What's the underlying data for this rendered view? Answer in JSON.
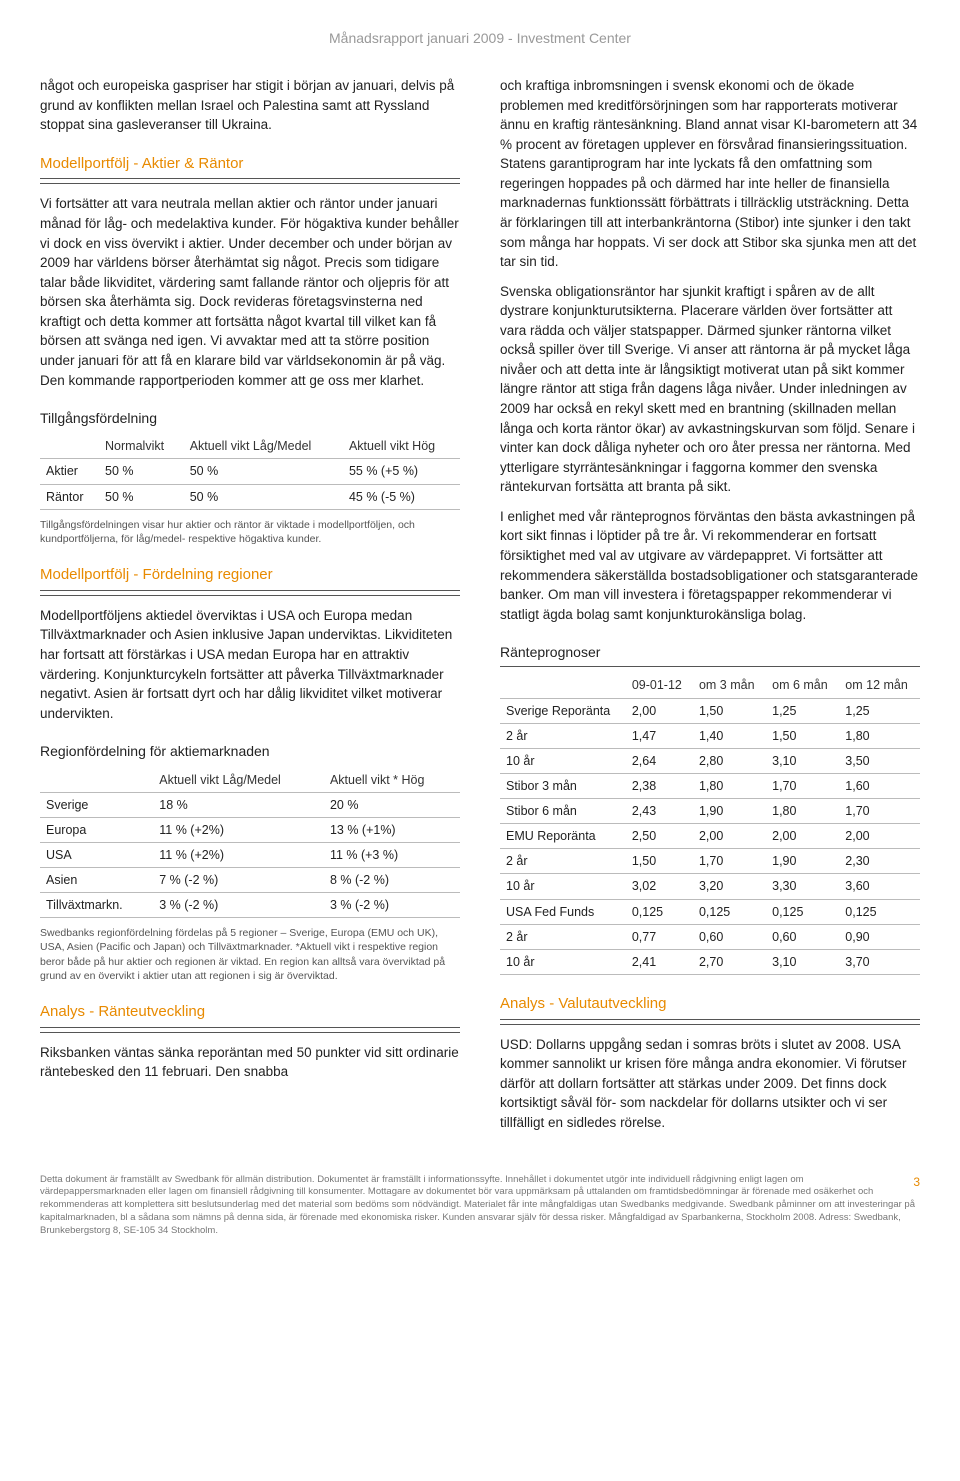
{
  "header": {
    "title": "Månadsrapport  januari 2009 - Investment Center"
  },
  "left": {
    "intro": "något och europeiska gaspriser har stigit i början av januari, delvis på grund av konflikten mellan Israel och Palestina samt att Ryssland stoppat sina gasleveranser till Ukraina.",
    "sec1_title": "Modellportfölj - Aktier & Räntor",
    "sec1_body": "Vi fortsätter att vara neutrala mellan aktier och räntor under januari månad för låg- och medelaktiva kunder. För högaktiva kunder behåller vi dock en viss övervikt i aktier. Under december och under början av 2009 har världens börser återhämtat sig något. Precis som tidigare talar både likviditet, värdering samt fallande räntor och oljepris för att börsen ska återhämta sig. Dock revideras företagsvinsterna ned kraftigt och detta kommer att fortsätta något kvartal till vilket kan få börsen att svänga ned igen. Vi avvaktar med att ta större position under januari för att få en klarare bild var världsekonomin är på väg. Den kommande rapportperioden kommer att ge oss mer klarhet.",
    "alloc_title": "Tillgångsfördelning",
    "alloc_table": {
      "headers": [
        "",
        "Normalvikt",
        "Aktuell vikt Låg/Medel",
        "Aktuell vikt Hög"
      ],
      "rows": [
        [
          "Aktier",
          "50 %",
          "50 %",
          "55 %  (+5 %)"
        ],
        [
          "Räntor",
          "50 %",
          "50 %",
          "45 %  (-5 %)"
        ]
      ]
    },
    "alloc_note": "Tillgångsfördelningen visar hur aktier och räntor är viktade i modellportföljen, och kundportföljerna, för låg/medel- respektive högaktiva kunder.",
    "sec2_title": "Modellportfölj - Fördelning regioner",
    "sec2_body": "Modellportföljens aktiedel överviktas i USA och Europa medan Tillväxtmarknader och Asien inklusive Japan underviktas. Likviditeten har fortsatt att förstärkas i USA medan Europa har en attraktiv värdering. Konjunkturcykeln fortsätter att påverka Tillväxtmarknader negativt. Asien är fortsatt dyrt och har dålig likviditet vilket motiverar undervikten.",
    "region_title": "Regionfördelning för aktiemarknaden",
    "region_table": {
      "headers": [
        "",
        "Aktuell vikt Låg/Medel",
        "Aktuell vikt * Hög"
      ],
      "rows": [
        [
          "Sverige",
          "18 %",
          "20 %"
        ],
        [
          "Europa",
          "11 % (+2%)",
          "13 % (+1%)"
        ],
        [
          "USA",
          "11 % (+2%)",
          "11 % (+3 %)"
        ],
        [
          "Asien",
          "7 % (-2 %)",
          "8 % (-2 %)"
        ],
        [
          "Tillväxtmarkn.",
          "3 % (-2 %)",
          "3 % (-2 %)"
        ]
      ]
    },
    "region_note": "Swedbanks regionfördelning fördelas på 5 regioner – Sverige, Europa (EMU och UK), USA, Asien (Pacific och Japan) och Tillväxtmarknader.\n*Aktuell vikt i respektive region beror både på hur aktier och regionen är viktad. En region kan alltså vara överviktad på grund av en övervikt i aktier utan att regionen i sig är överviktad.",
    "sec3_title": "Analys - Ränteutveckling",
    "sec3_body": "Riksbanken väntas sänka reporäntan med 50 punkter vid sitt ordinarie räntebesked den 11 februari. Den snabba"
  },
  "right": {
    "p1": "och kraftiga inbromsningen i svensk ekonomi och de ökade problemen med kreditförsörjningen som har rapporterats motiverar ännu en kraftig räntesänkning. Bland annat visar KI-barometern att 34 % procent av företagen upplever en försvårad finansieringssituation. Statens garantiprogram har inte lyckats få den omfattning som regeringen hoppades på och därmed har inte heller de finansiella marknadernas funktionssätt förbättrats i tillräcklig utsträckning. Detta är förklaringen till att interbankräntorna (Stibor) inte sjunker i den takt som många har hoppats. Vi ser dock att Stibor ska sjunka men att det tar sin tid.",
    "p2": " Svenska obligationsräntor har sjunkit kraftigt i spåren av de allt dystrare konjunkturutsikterna. Placerare världen över fortsätter att vara rädda och väljer statspapper. Därmed sjunker räntorna vilket också spiller över till Sverige.  Vi anser att räntorna är på mycket låga nivåer och att detta inte är långsiktigt motiverat utan på sikt kommer längre räntor att stiga från dagens låga nivåer. Under inledningen av 2009 har också en rekyl skett med en brantning (skillnaden mellan långa och korta räntor ökar) av avkastningskurvan som följd. Senare i vinter kan dock dåliga nyheter och oro åter pressa ner räntorna. Med ytterligare styrräntesänkningar i faggorna kommer den svenska räntekurvan fortsätta att branta på sikt.",
    "p3": "I enlighet med vår ränteprognos förväntas den bästa avkastningen på kort sikt finnas i löptider på tre år. Vi rekommenderar en fortsatt försiktighet med val av utgivare av värdepappret. Vi fortsätter att rekommendera säkerställda bostadsobligationer och statsgaranterade banker. Om man vill investera i företagspapper rekommenderar vi statligt ägda bolag samt konjunkturokänsliga bolag.",
    "rate_title": "Ränteprognoser",
    "rate_table": {
      "headers": [
        "",
        "09-01-12",
        "om 3 mån",
        "om 6 mån",
        "om 12 mån"
      ],
      "rows": [
        [
          "Sverige Reporänta",
          "2,00",
          "1,50",
          "1,25",
          "1,25"
        ],
        [
          "2 år",
          "1,47",
          "1,40",
          "1,50",
          "1,80"
        ],
        [
          "10 år",
          "2,64",
          "2,80",
          "3,10",
          "3,50"
        ],
        [
          "Stibor 3 mån",
          "2,38",
          "1,80",
          "1,70",
          "1,60"
        ],
        [
          "Stibor 6 mån",
          "2,43",
          "1,90",
          "1,80",
          "1,70"
        ],
        [
          "EMU Reporänta",
          "2,50",
          "2,00",
          "2,00",
          "2,00"
        ],
        [
          "2 år",
          "1,50",
          "1,70",
          "1,90",
          "2,30"
        ],
        [
          "10 år",
          "3,02",
          "3,20",
          "3,30",
          "3,60"
        ],
        [
          "USA Fed Funds",
          "0,125",
          "0,125",
          "0,125",
          "0,125"
        ],
        [
          "2 år",
          "0,77",
          "0,60",
          "0,60",
          "0,90"
        ],
        [
          "10 år",
          "2,41",
          "2,70",
          "3,10",
          "3,70"
        ]
      ]
    },
    "sec4_title": "Analys - Valutautveckling",
    "sec4_body": "USD: Dollarns uppgång sedan i somras bröts i slutet av 2008. USA kommer sannolikt ur krisen före många andra ekonomier. Vi förutser därför att dollarn fortsätter att stärkas under 2009. Det finns dock kortsiktigt såväl för- som nackdelar för dollarns utsikter och vi ser tillfälligt en sidledes rörelse."
  },
  "footer": {
    "text": "Detta dokument är framställt av Swedbank för allmän distribution. Dokumentet är framställt i informationssyfte. Innehållet i dokumentet utgör inte individuell rådgivning enligt lagen om värdepappersmarknaden eller lagen om finansiell rådgivning till konsumenter. Mottagare av dokumentet bör vara uppmärksam på uttalanden om framtidsbedömningar är förenade med osäkerhet och rekommenderas att komplettera sitt beslutsunderlag med det material som bedöms som nödvändigt. Materialet får inte mångfaldigas utan Swedbanks medgivande. Swedbank påminner om att investeringar på kapitalmarknaden, bl a sådana som nämns på denna sida, är förenade med ekonomiska risker. Kunden ansvarar själv för dessa risker.  Mångfaldigad av Sparbankerna, Stockholm 2008. Adress: Swedbank, Brunkebergstorg 8, SE-105 34 Stockholm.",
    "page": "3"
  }
}
